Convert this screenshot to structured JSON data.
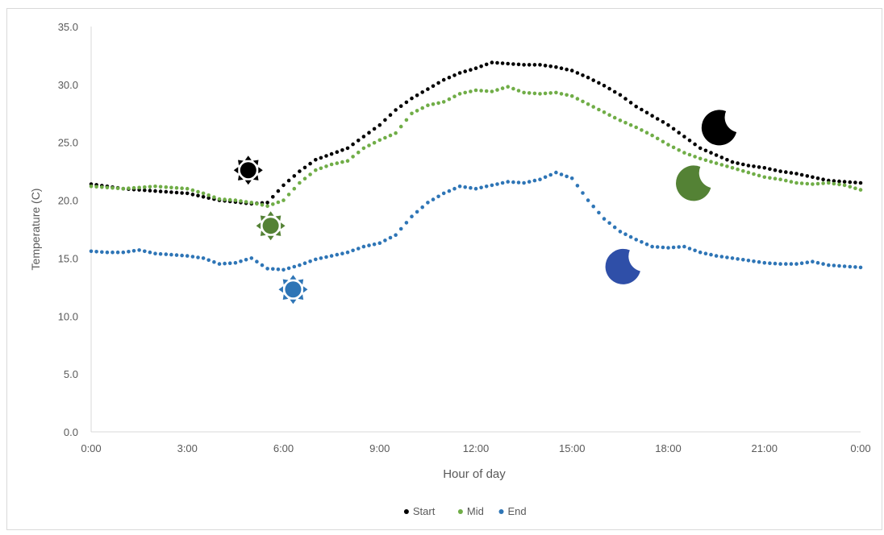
{
  "chart_data": {
    "type": "scatter",
    "title": "",
    "xlabel": "Hour of day",
    "ylabel": "Temperature  (C)",
    "xlim": [
      "0:00",
      "0:00"
    ],
    "ylim": [
      0,
      35
    ],
    "xticks": [
      "0:00",
      "3:00",
      "6:00",
      "9:00",
      "12:00",
      "15:00",
      "18:00",
      "21:00",
      "0:00"
    ],
    "yticks": [
      "0.0",
      "5.0",
      "10.0",
      "15.0",
      "20.0",
      "25.0",
      "30.0",
      "35.0"
    ],
    "grid": false,
    "legend_position": "bottom",
    "x_unit": "hours",
    "series": [
      {
        "name": "Start",
        "color": "#000000",
        "x": [
          0,
          1,
          2,
          3,
          4,
          5,
          5.5,
          6,
          6.5,
          7,
          7.5,
          8,
          8.5,
          9,
          9.5,
          10,
          10.5,
          11,
          11.5,
          12,
          12.5,
          13,
          13.5,
          14,
          14.5,
          15,
          15.5,
          16,
          16.5,
          17,
          17.5,
          18,
          18.5,
          19,
          19.5,
          20,
          20.5,
          21,
          21.5,
          22,
          22.5,
          23,
          23.5,
          24
        ],
        "y": [
          21.4,
          21.0,
          20.8,
          20.6,
          20.0,
          19.7,
          19.8,
          21.3,
          22.5,
          23.5,
          24.0,
          24.5,
          25.5,
          26.5,
          27.8,
          28.8,
          29.6,
          30.4,
          31.0,
          31.4,
          31.9,
          31.8,
          31.7,
          31.7,
          31.5,
          31.2,
          30.6,
          29.9,
          29.1,
          28.1,
          27.3,
          26.5,
          25.5,
          24.5,
          23.9,
          23.3,
          23.0,
          22.8,
          22.5,
          22.3,
          22.0,
          21.7,
          21.6,
          21.5
        ]
      },
      {
        "name": "Mid",
        "color": "#70ad47",
        "x": [
          0,
          1,
          2,
          3,
          3.5,
          4,
          4.5,
          5,
          5.5,
          6,
          6.5,
          7,
          7.5,
          8,
          8.5,
          9,
          9.5,
          10,
          10.5,
          11,
          11.5,
          12,
          12.5,
          13,
          13.5,
          14,
          14.5,
          15,
          15.5,
          16,
          16.5,
          17,
          17.5,
          18,
          18.5,
          19,
          19.5,
          20,
          20.5,
          21,
          21.5,
          22,
          22.5,
          23,
          23.5,
          24
        ],
        "y": [
          21.2,
          21.0,
          21.2,
          21.0,
          20.6,
          20.1,
          20.0,
          19.8,
          19.5,
          20.0,
          21.5,
          22.6,
          23.1,
          23.4,
          24.5,
          25.2,
          25.8,
          27.5,
          28.2,
          28.5,
          29.2,
          29.5,
          29.4,
          29.8,
          29.3,
          29.2,
          29.3,
          29.0,
          28.3,
          27.6,
          26.9,
          26.3,
          25.6,
          24.8,
          24.1,
          23.6,
          23.2,
          22.8,
          22.4,
          22.0,
          21.8,
          21.5,
          21.4,
          21.5,
          21.3,
          20.9
        ]
      },
      {
        "name": "End",
        "color": "#2e75b6",
        "x": [
          0,
          0.5,
          1,
          1.5,
          2,
          2.5,
          3,
          3.5,
          4,
          4.5,
          5,
          5.5,
          6,
          6.5,
          7,
          7.5,
          8,
          8.5,
          9,
          9.5,
          10,
          10.5,
          11,
          11.5,
          12,
          12.5,
          13,
          13.5,
          14,
          14.5,
          15,
          15.5,
          16,
          16.5,
          17,
          17.5,
          18,
          18.5,
          19,
          19.5,
          20,
          20.5,
          21,
          21.5,
          22,
          22.5,
          23,
          23.5,
          24
        ],
        "y": [
          15.6,
          15.5,
          15.5,
          15.7,
          15.4,
          15.3,
          15.2,
          15.0,
          14.5,
          14.6,
          15.0,
          14.1,
          14.0,
          14.4,
          14.9,
          15.2,
          15.5,
          16.0,
          16.3,
          17.0,
          18.6,
          19.8,
          20.6,
          21.2,
          21.0,
          21.3,
          21.6,
          21.5,
          21.8,
          22.4,
          21.9,
          20.0,
          18.4,
          17.3,
          16.6,
          16.0,
          15.9,
          16.0,
          15.5,
          15.2,
          15.0,
          14.8,
          14.6,
          14.5,
          14.5,
          14.7,
          14.4,
          14.3,
          14.2
        ]
      }
    ],
    "annotations": [
      {
        "kind": "sun",
        "series": "Start",
        "x": 4.9,
        "y": 22.6,
        "color": "#000000"
      },
      {
        "kind": "sun",
        "series": "Mid",
        "x": 5.6,
        "y": 17.8,
        "color": "#548235"
      },
      {
        "kind": "sun",
        "series": "End",
        "x": 6.3,
        "y": 12.3,
        "color": "#2e75b6"
      },
      {
        "kind": "moon",
        "series": "Start",
        "x": 19.6,
        "y": 26.3,
        "color": "#000000"
      },
      {
        "kind": "moon",
        "series": "Mid",
        "x": 18.8,
        "y": 21.5,
        "color": "#548235"
      },
      {
        "kind": "moon",
        "series": "End",
        "x": 16.6,
        "y": 14.3,
        "color": "#2f4fa8"
      }
    ]
  }
}
